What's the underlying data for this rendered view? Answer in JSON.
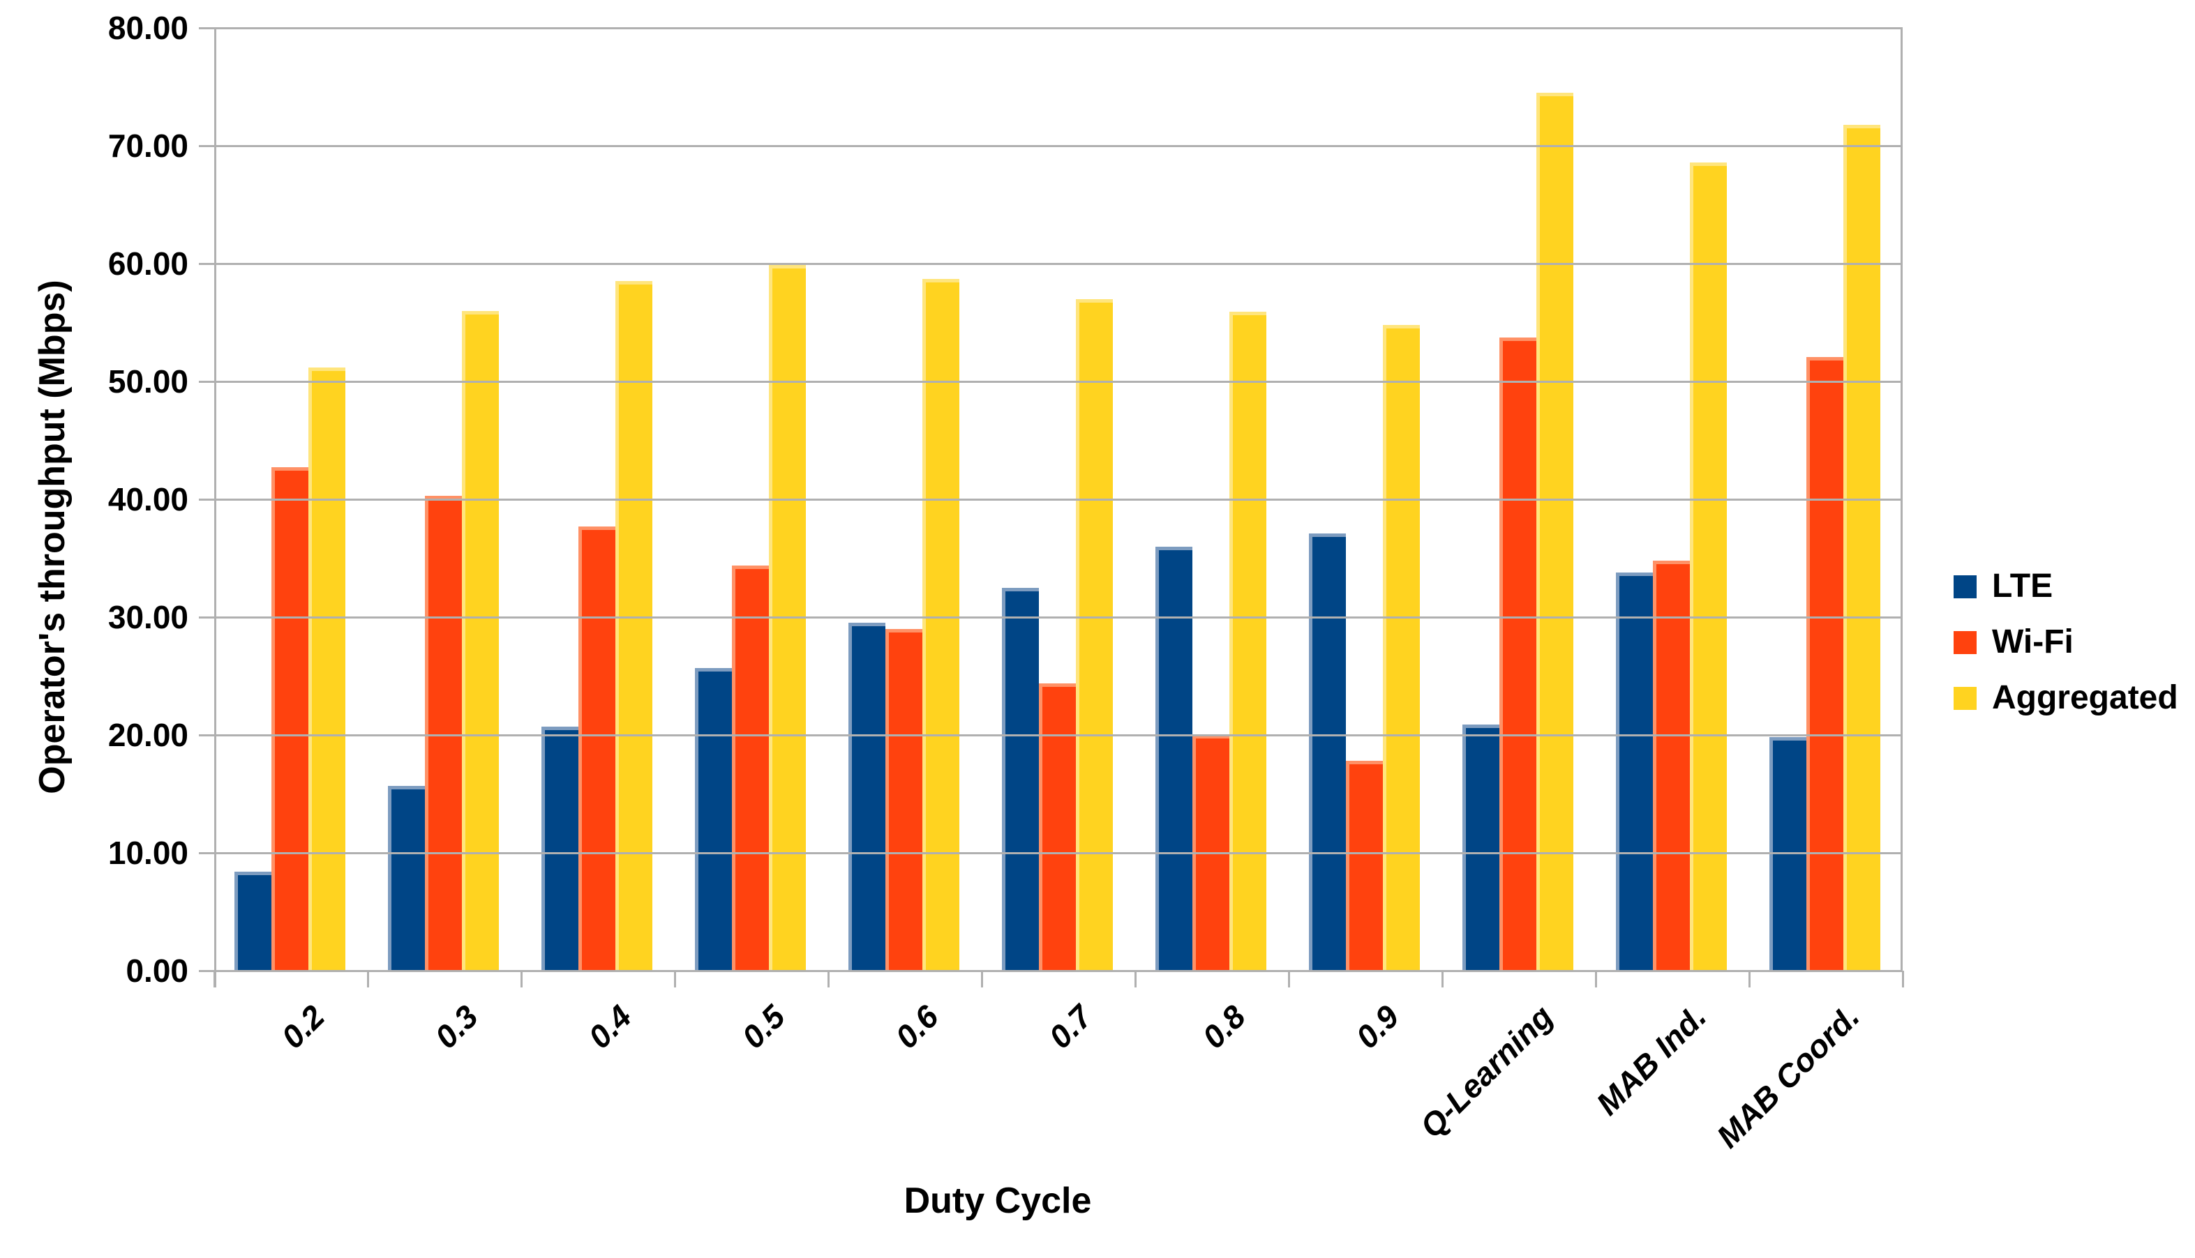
{
  "chart_data": {
    "type": "bar",
    "title": "",
    "xlabel": "Duty Cycle",
    "ylabel": "Operator's throughput (Mbps)",
    "ylim": [
      0,
      80
    ],
    "ytick_step": 10,
    "ytick_labels": [
      "0.00",
      "10.00",
      "20.00",
      "30.00",
      "40.00",
      "50.00",
      "60.00",
      "70.00",
      "80.00"
    ],
    "grid": "horizontal",
    "legend_position": "right",
    "categories": [
      "0.2",
      "0.3",
      "0.4",
      "0.5",
      "0.6",
      "0.7",
      "0.8",
      "0.9",
      "Q-Learning",
      "MAB Ind.",
      "MAB Coord."
    ],
    "series": [
      {
        "name": "LTE",
        "color": "#004586",
        "edge_highlight": "#7d9cc0",
        "values": [
          8.4,
          15.7,
          20.7,
          25.7,
          29.5,
          32.5,
          36.0,
          37.1,
          20.9,
          33.8,
          19.8
        ]
      },
      {
        "name": "Wi-Fi",
        "color": "#ff420e",
        "edge_highlight": "#ff9166",
        "values": [
          42.7,
          40.3,
          37.7,
          34.4,
          29.0,
          24.4,
          20.0,
          17.8,
          53.7,
          34.8,
          52.1
        ]
      },
      {
        "name": "Aggregated",
        "color": "#ffd320",
        "edge_highlight": "#ffe57d",
        "values": [
          51.2,
          56.0,
          58.5,
          59.9,
          58.7,
          57.0,
          55.9,
          54.8,
          74.5,
          68.6,
          71.8
        ]
      }
    ]
  },
  "colors": {
    "gridline": "#b0b0b0",
    "text": "#000000",
    "background": "#ffffff"
  }
}
